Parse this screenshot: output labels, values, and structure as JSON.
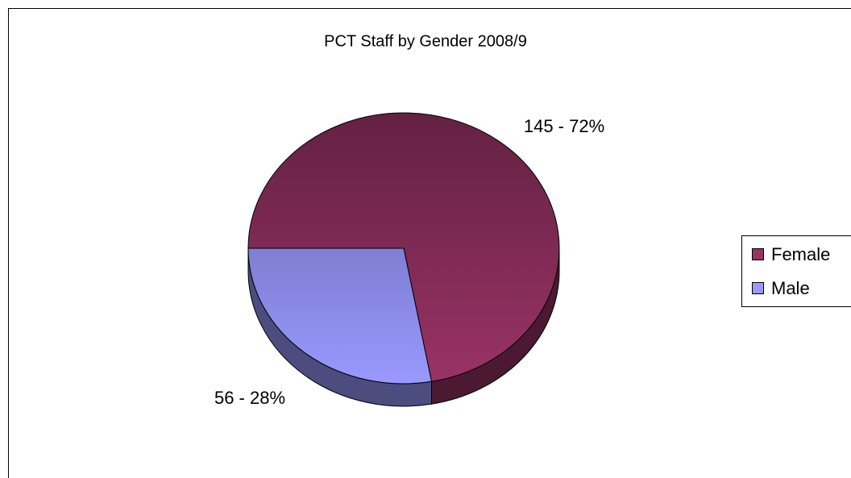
{
  "chart_data": {
    "type": "pie",
    "title": "PCT Staff by Gender 2008/9",
    "categories": [
      "Female",
      "Male"
    ],
    "values": [
      145,
      56
    ],
    "value_labels": [
      "145 - 72%",
      "56 - 28%"
    ],
    "colors": [
      "#993366",
      "#9999ff"
    ],
    "legend": "right"
  }
}
